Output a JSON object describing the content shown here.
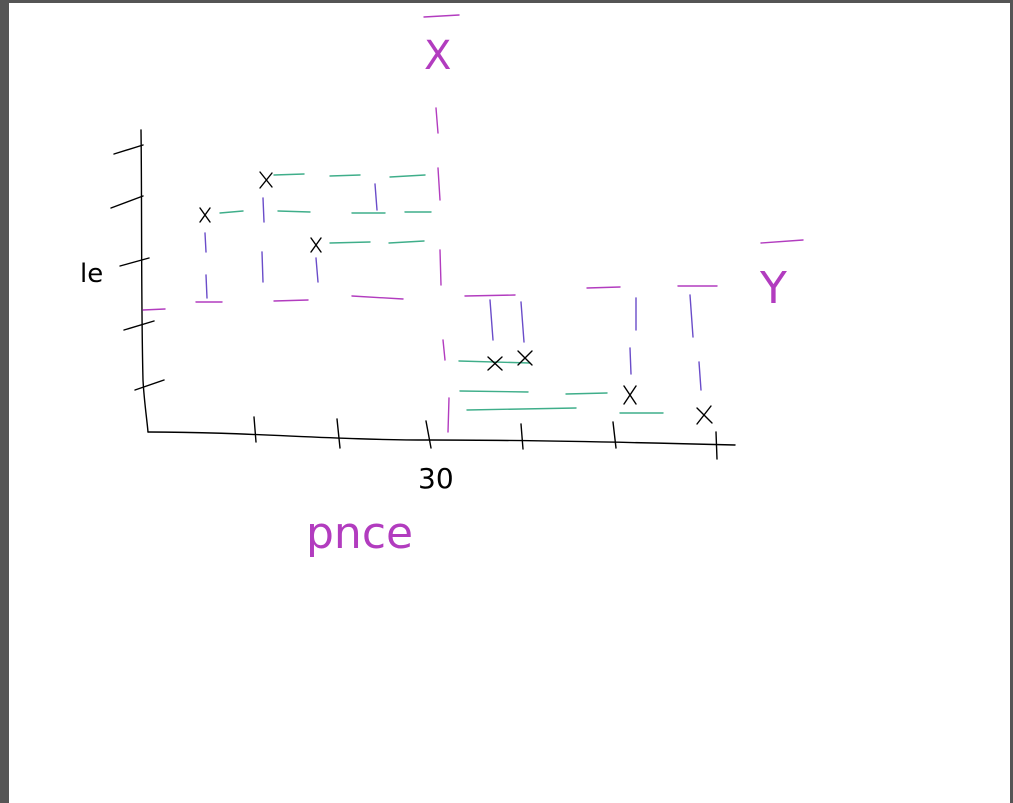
{
  "canvas": {
    "background": "#ffffff",
    "frame_color": "#555555"
  },
  "colors": {
    "axes": "#000000",
    "means": "#b23cbf",
    "deviation_y": "#6a4cc9",
    "deviation_x": "#3fae8a"
  },
  "labels": {
    "x_bar": "X",
    "y_bar": "Y",
    "y_tick": "le",
    "x_tick": "30",
    "x_axis": "pnce"
  },
  "points_upper_left": [
    "x",
    "x",
    "x"
  ],
  "points_lower_right": [
    "x",
    "x",
    "x",
    "x"
  ]
}
